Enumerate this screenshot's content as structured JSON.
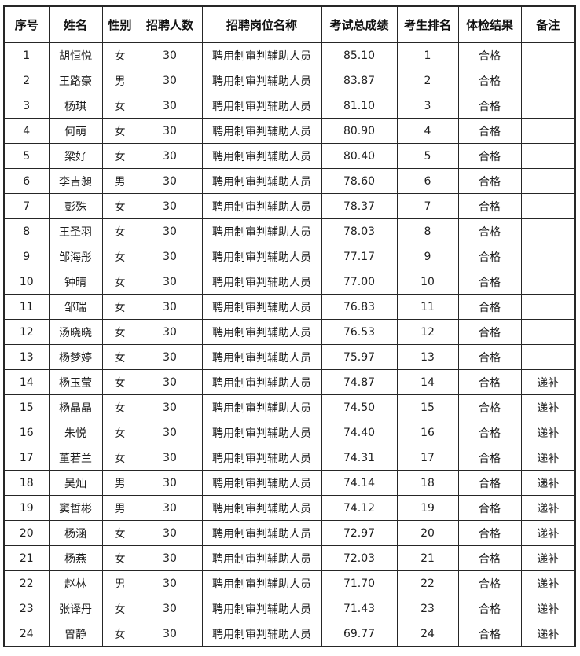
{
  "table": {
    "columns": [
      {
        "key": "no",
        "label": "序号"
      },
      {
        "key": "name",
        "label": "姓名"
      },
      {
        "key": "gender",
        "label": "性别"
      },
      {
        "key": "count",
        "label": "招聘人数"
      },
      {
        "key": "position",
        "label": "招聘岗位名称"
      },
      {
        "key": "score",
        "label": "考试总成绩"
      },
      {
        "key": "rank",
        "label": "考生排名"
      },
      {
        "key": "result",
        "label": "体检结果"
      },
      {
        "key": "remark",
        "label": "备注"
      }
    ],
    "rows": [
      {
        "no": "1",
        "name": "胡恒悦",
        "gender": "女",
        "count": "30",
        "position": "聘用制审判辅助人员",
        "score": "85.10",
        "rank": "1",
        "result": "合格",
        "remark": ""
      },
      {
        "no": "2",
        "name": "王路豪",
        "gender": "男",
        "count": "30",
        "position": "聘用制审判辅助人员",
        "score": "83.87",
        "rank": "2",
        "result": "合格",
        "remark": ""
      },
      {
        "no": "3",
        "name": "杨琪",
        "gender": "女",
        "count": "30",
        "position": "聘用制审判辅助人员",
        "score": "81.10",
        "rank": "3",
        "result": "合格",
        "remark": ""
      },
      {
        "no": "4",
        "name": "何萌",
        "gender": "女",
        "count": "30",
        "position": "聘用制审判辅助人员",
        "score": "80.90",
        "rank": "4",
        "result": "合格",
        "remark": ""
      },
      {
        "no": "5",
        "name": "梁好",
        "gender": "女",
        "count": "30",
        "position": "聘用制审判辅助人员",
        "score": "80.40",
        "rank": "5",
        "result": "合格",
        "remark": ""
      },
      {
        "no": "6",
        "name": "李吉昶",
        "gender": "男",
        "count": "30",
        "position": "聘用制审判辅助人员",
        "score": "78.60",
        "rank": "6",
        "result": "合格",
        "remark": ""
      },
      {
        "no": "7",
        "name": "彭殊",
        "gender": "女",
        "count": "30",
        "position": "聘用制审判辅助人员",
        "score": "78.37",
        "rank": "7",
        "result": "合格",
        "remark": ""
      },
      {
        "no": "8",
        "name": "王圣羽",
        "gender": "女",
        "count": "30",
        "position": "聘用制审判辅助人员",
        "score": "78.03",
        "rank": "8",
        "result": "合格",
        "remark": ""
      },
      {
        "no": "9",
        "name": "邹海彤",
        "gender": "女",
        "count": "30",
        "position": "聘用制审判辅助人员",
        "score": "77.17",
        "rank": "9",
        "result": "合格",
        "remark": ""
      },
      {
        "no": "10",
        "name": "钟晴",
        "gender": "女",
        "count": "30",
        "position": "聘用制审判辅助人员",
        "score": "77.00",
        "rank": "10",
        "result": "合格",
        "remark": ""
      },
      {
        "no": "11",
        "name": "邹瑞",
        "gender": "女",
        "count": "30",
        "position": "聘用制审判辅助人员",
        "score": "76.83",
        "rank": "11",
        "result": "合格",
        "remark": ""
      },
      {
        "no": "12",
        "name": "汤晓晓",
        "gender": "女",
        "count": "30",
        "position": "聘用制审判辅助人员",
        "score": "76.53",
        "rank": "12",
        "result": "合格",
        "remark": ""
      },
      {
        "no": "13",
        "name": "杨梦婷",
        "gender": "女",
        "count": "30",
        "position": "聘用制审判辅助人员",
        "score": "75.97",
        "rank": "13",
        "result": "合格",
        "remark": ""
      },
      {
        "no": "14",
        "name": "杨玉莹",
        "gender": "女",
        "count": "30",
        "position": "聘用制审判辅助人员",
        "score": "74.87",
        "rank": "14",
        "result": "合格",
        "remark": "递补"
      },
      {
        "no": "15",
        "name": "杨晶晶",
        "gender": "女",
        "count": "30",
        "position": "聘用制审判辅助人员",
        "score": "74.50",
        "rank": "15",
        "result": "合格",
        "remark": "递补"
      },
      {
        "no": "16",
        "name": "朱悦",
        "gender": "女",
        "count": "30",
        "position": "聘用制审判辅助人员",
        "score": "74.40",
        "rank": "16",
        "result": "合格",
        "remark": "递补"
      },
      {
        "no": "17",
        "name": "董若兰",
        "gender": "女",
        "count": "30",
        "position": "聘用制审判辅助人员",
        "score": "74.31",
        "rank": "17",
        "result": "合格",
        "remark": "递补"
      },
      {
        "no": "18",
        "name": "吴灿",
        "gender": "男",
        "count": "30",
        "position": "聘用制审判辅助人员",
        "score": "74.14",
        "rank": "18",
        "result": "合格",
        "remark": "递补"
      },
      {
        "no": "19",
        "name": "窦哲彬",
        "gender": "男",
        "count": "30",
        "position": "聘用制审判辅助人员",
        "score": "74.12",
        "rank": "19",
        "result": "合格",
        "remark": "递补"
      },
      {
        "no": "20",
        "name": "杨涵",
        "gender": "女",
        "count": "30",
        "position": "聘用制审判辅助人员",
        "score": "72.97",
        "rank": "20",
        "result": "合格",
        "remark": "递补"
      },
      {
        "no": "21",
        "name": "杨燕",
        "gender": "女",
        "count": "30",
        "position": "聘用制审判辅助人员",
        "score": "72.03",
        "rank": "21",
        "result": "合格",
        "remark": "递补"
      },
      {
        "no": "22",
        "name": "赵林",
        "gender": "男",
        "count": "30",
        "position": "聘用制审判辅助人员",
        "score": "71.70",
        "rank": "22",
        "result": "合格",
        "remark": "递补"
      },
      {
        "no": "23",
        "name": "张译丹",
        "gender": "女",
        "count": "30",
        "position": "聘用制审判辅助人员",
        "score": "71.43",
        "rank": "23",
        "result": "合格",
        "remark": "递补"
      },
      {
        "no": "24",
        "name": "曾静",
        "gender": "女",
        "count": "30",
        "position": "聘用制审判辅助人员",
        "score": "69.77",
        "rank": "24",
        "result": "合格",
        "remark": "递补"
      }
    ]
  },
  "colors": {
    "border": "#262626",
    "text": "#1f1f1f",
    "background": "#ffffff",
    "pass_status": "#1f1f1f"
  }
}
